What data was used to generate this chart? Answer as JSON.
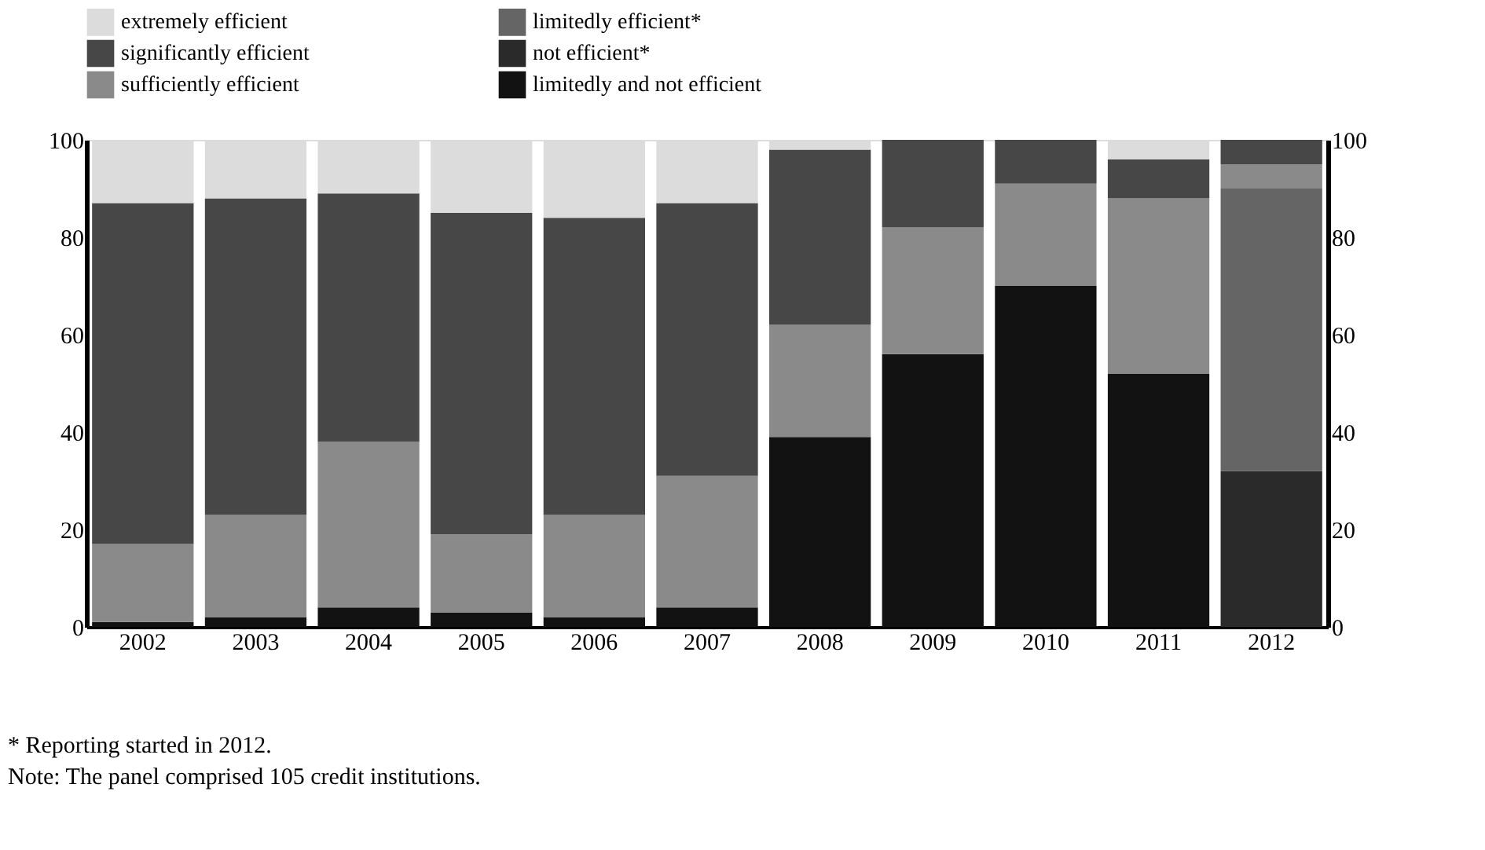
{
  "chart_data": {
    "type": "bar",
    "stacked": true,
    "categories": [
      "2002",
      "2003",
      "2004",
      "2005",
      "2006",
      "2007",
      "2008",
      "2009",
      "2010",
      "2011",
      "2012"
    ],
    "series": [
      {
        "name": "limitedly and not efficient",
        "color": "#121212",
        "values": [
          1,
          2,
          4,
          3,
          2,
          4,
          39,
          56,
          70,
          52,
          null
        ]
      },
      {
        "name": "not efficient*",
        "color": "#2a2a2a",
        "values": [
          null,
          null,
          null,
          null,
          null,
          null,
          null,
          null,
          null,
          null,
          32
        ]
      },
      {
        "name": "limitedly efficient*",
        "color": "#656565",
        "values": [
          null,
          null,
          null,
          null,
          null,
          null,
          null,
          null,
          null,
          null,
          58
        ]
      },
      {
        "name": "sufficiently efficient",
        "color": "#8a8a8a",
        "values": [
          16,
          21,
          34,
          16,
          21,
          27,
          23,
          26,
          21,
          36,
          5
        ]
      },
      {
        "name": "significantly efficient",
        "color": "#474747",
        "values": [
          70,
          65,
          51,
          66,
          61,
          56,
          36,
          18,
          9,
          8,
          5
        ]
      },
      {
        "name": "extremely efficient",
        "color": "#dcdcdc",
        "values": [
          13,
          12,
          11,
          15,
          16,
          13,
          2,
          null,
          null,
          4,
          null
        ]
      }
    ],
    "ylim": [
      0,
      100
    ],
    "yticks": [
      0,
      20,
      40,
      60,
      80,
      100
    ],
    "y2lim": [
      0,
      100
    ],
    "y2ticks": [
      0,
      20,
      40,
      60,
      80,
      100
    ],
    "grid": false,
    "legend": "top",
    "annotations": [
      "* Reporting started in 2012.",
      "Note: The panel comprised 105 credit institutions."
    ]
  }
}
